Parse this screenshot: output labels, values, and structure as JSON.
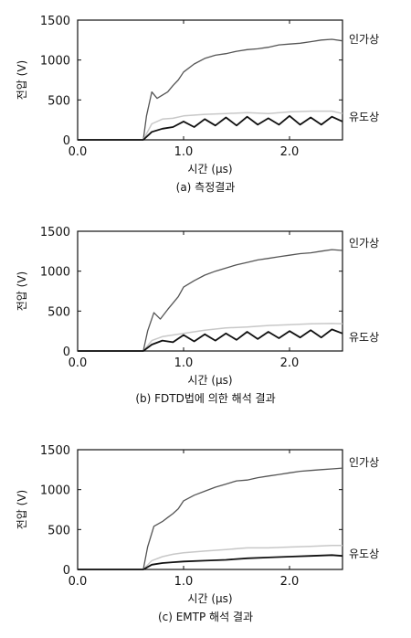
{
  "chart_data": [
    {
      "type": "line",
      "caption": "(a) 측정결과",
      "xlabel": "시간 (μs)",
      "ylabel": "전압 (V)",
      "xlim": [
        0,
        2.5
      ],
      "ylim": [
        0,
        1500
      ],
      "xticks": [
        "0.0",
        "1.0",
        "2.0"
      ],
      "yticks": [
        "0",
        "500",
        "1000",
        "1500"
      ],
      "grid": false,
      "series": [
        {
          "name": "인가상",
          "color": "#555555",
          "x": [
            0,
            0.62,
            0.65,
            0.7,
            0.75,
            0.8,
            0.85,
            0.9,
            0.95,
            1.0,
            1.1,
            1.2,
            1.3,
            1.4,
            1.5,
            1.6,
            1.7,
            1.8,
            1.9,
            2.0,
            2.1,
            2.2,
            2.3,
            2.4,
            2.5
          ],
          "y": [
            0,
            0,
            300,
            600,
            520,
            560,
            600,
            680,
            750,
            850,
            950,
            1020,
            1060,
            1080,
            1110,
            1130,
            1140,
            1160,
            1190,
            1200,
            1210,
            1230,
            1250,
            1260,
            1240
          ]
        },
        {
          "name": "",
          "color": "#c8c8c8",
          "x": [
            0,
            0.62,
            0.7,
            0.8,
            0.9,
            1.0,
            1.2,
            1.4,
            1.6,
            1.8,
            2.0,
            2.2,
            2.4,
            2.5
          ],
          "y": [
            0,
            0,
            200,
            260,
            270,
            300,
            320,
            330,
            340,
            330,
            350,
            360,
            360,
            330
          ]
        },
        {
          "name": "유도상",
          "color": "#111111",
          "x": [
            0,
            0.62,
            0.7,
            0.8,
            0.9,
            1.0,
            1.1,
            1.2,
            1.3,
            1.4,
            1.5,
            1.6,
            1.7,
            1.8,
            1.9,
            2.0,
            2.1,
            2.2,
            2.3,
            2.4,
            2.5
          ],
          "y": [
            0,
            0,
            100,
            140,
            160,
            230,
            160,
            260,
            180,
            280,
            180,
            290,
            190,
            270,
            190,
            300,
            190,
            280,
            190,
            290,
            230
          ]
        }
      ]
    },
    {
      "type": "line",
      "caption": "(b) FDTD법에 의한 해석 결과",
      "xlabel": "시간 (μs)",
      "ylabel": "전압 (V)",
      "xlim": [
        0,
        2.5
      ],
      "ylim": [
        0,
        1500
      ],
      "xticks": [
        "0.0",
        "1.0",
        "2.0"
      ],
      "yticks": [
        "0",
        "500",
        "1000",
        "1500"
      ],
      "grid": false,
      "series": [
        {
          "name": "인가상",
          "color": "#555555",
          "x": [
            0,
            0.62,
            0.66,
            0.72,
            0.78,
            0.85,
            0.9,
            0.95,
            1.0,
            1.1,
            1.2,
            1.3,
            1.4,
            1.5,
            1.6,
            1.7,
            1.8,
            1.9,
            2.0,
            2.1,
            2.2,
            2.3,
            2.4,
            2.5
          ],
          "y": [
            0,
            0,
            250,
            480,
            400,
            520,
            600,
            680,
            800,
            880,
            950,
            1000,
            1040,
            1080,
            1110,
            1140,
            1160,
            1180,
            1200,
            1220,
            1230,
            1250,
            1270,
            1260
          ]
        },
        {
          "name": "",
          "color": "#c8c8c8",
          "x": [
            0,
            0.62,
            0.7,
            0.8,
            0.9,
            1.0,
            1.2,
            1.4,
            1.6,
            1.8,
            2.0,
            2.2,
            2.4,
            2.5
          ],
          "y": [
            0,
            0,
            130,
            180,
            200,
            220,
            260,
            290,
            300,
            320,
            330,
            340,
            345,
            340
          ]
        },
        {
          "name": "유도상",
          "color": "#111111",
          "x": [
            0,
            0.62,
            0.7,
            0.8,
            0.9,
            1.0,
            1.1,
            1.2,
            1.3,
            1.4,
            1.5,
            1.6,
            1.7,
            1.8,
            1.9,
            2.0,
            2.1,
            2.2,
            2.3,
            2.4,
            2.5
          ],
          "y": [
            0,
            0,
            80,
            130,
            110,
            200,
            120,
            210,
            130,
            220,
            140,
            240,
            150,
            240,
            160,
            250,
            170,
            260,
            170,
            270,
            220
          ]
        }
      ]
    },
    {
      "type": "line",
      "caption": "(c) EMTP 해석 결과",
      "xlabel": "시간 (μs)",
      "ylabel": "전압 (V)",
      "xlim": [
        0,
        2.5
      ],
      "ylim": [
        0,
        1500
      ],
      "xticks": [
        "0.0",
        "1.0",
        "2.0"
      ],
      "yticks": [
        "0",
        "500",
        "1000",
        "1500"
      ],
      "grid": false,
      "series": [
        {
          "name": "인가상",
          "color": "#555555",
          "x": [
            0,
            0.62,
            0.66,
            0.72,
            0.8,
            0.85,
            0.9,
            0.95,
            1.0,
            1.1,
            1.2,
            1.3,
            1.4,
            1.5,
            1.6,
            1.7,
            1.8,
            1.9,
            2.0,
            2.1,
            2.2,
            2.3,
            2.4,
            2.5
          ],
          "y": [
            0,
            0,
            280,
            540,
            600,
            650,
            700,
            760,
            860,
            930,
            980,
            1030,
            1070,
            1110,
            1120,
            1150,
            1170,
            1190,
            1210,
            1230,
            1240,
            1250,
            1260,
            1270
          ]
        },
        {
          "name": "",
          "color": "#c8c8c8",
          "x": [
            0,
            0.62,
            0.7,
            0.8,
            0.9,
            1.0,
            1.2,
            1.4,
            1.6,
            1.8,
            2.0,
            2.2,
            2.4,
            2.5
          ],
          "y": [
            0,
            0,
            110,
            160,
            190,
            210,
            230,
            250,
            270,
            270,
            280,
            290,
            300,
            300
          ]
        },
        {
          "name": "유도상",
          "color": "#111111",
          "x": [
            0,
            0.62,
            0.7,
            0.8,
            0.9,
            1.0,
            1.2,
            1.4,
            1.6,
            1.8,
            2.0,
            2.2,
            2.4,
            2.5
          ],
          "y": [
            0,
            0,
            60,
            80,
            90,
            100,
            110,
            120,
            140,
            150,
            160,
            170,
            180,
            170
          ]
        }
      ]
    }
  ]
}
